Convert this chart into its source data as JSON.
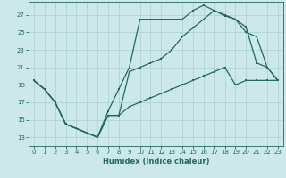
{
  "xlabel": "Humidex (Indice chaleur)",
  "bg_color": "#cce8e8",
  "line_color": "#1e6b5e",
  "grid_color": "#aacfcf",
  "ylim": [
    12.0,
    28.5
  ],
  "xlim": [
    -0.5,
    23.5
  ],
  "yticks": [
    13,
    15,
    17,
    19,
    21,
    23,
    25,
    27
  ],
  "xticks": [
    0,
    1,
    2,
    3,
    4,
    5,
    6,
    7,
    8,
    9,
    10,
    11,
    12,
    13,
    14,
    15,
    16,
    17,
    18,
    19,
    20,
    21,
    22,
    23
  ],
  "line1_x": [
    0,
    1,
    2,
    3,
    4,
    6,
    7,
    8,
    9,
    10,
    11,
    12,
    13,
    14,
    15,
    16,
    17,
    18,
    19,
    20,
    21,
    22,
    23
  ],
  "line1_y": [
    19.5,
    18.5,
    17.0,
    14.5,
    14.0,
    13.0,
    16.0,
    18.5,
    21.0,
    26.5,
    26.5,
    26.5,
    26.5,
    26.5,
    27.5,
    28.1,
    27.5,
    26.9,
    26.5,
    25.0,
    24.5,
    21.0,
    19.5
  ],
  "line2_x": [
    0,
    1,
    2,
    3,
    4,
    6,
    7,
    8,
    9,
    10,
    11,
    12,
    13,
    14,
    15,
    16,
    17,
    18,
    19,
    20,
    21,
    22,
    23
  ],
  "line2_y": [
    19.5,
    18.5,
    17.0,
    14.5,
    14.0,
    13.0,
    15.5,
    15.5,
    20.5,
    21.0,
    21.5,
    22.0,
    23.0,
    24.5,
    25.5,
    26.5,
    27.5,
    27.0,
    26.5,
    25.6,
    21.5,
    21.0,
    19.5
  ],
  "line3_x": [
    0,
    1,
    2,
    3,
    4,
    6,
    7,
    8,
    9,
    10,
    11,
    12,
    13,
    14,
    15,
    16,
    17,
    18,
    19,
    20,
    21,
    22,
    23
  ],
  "line3_y": [
    19.5,
    18.5,
    17.0,
    14.5,
    14.0,
    13.0,
    15.5,
    15.5,
    16.5,
    17.0,
    17.5,
    18.0,
    18.5,
    19.0,
    19.5,
    20.0,
    20.5,
    21.0,
    19.0,
    19.5,
    19.5,
    19.5,
    19.5
  ],
  "marker_size": 1.8,
  "lw": 0.9,
  "tick_fontsize": 5.0,
  "xlabel_fontsize": 6.0
}
